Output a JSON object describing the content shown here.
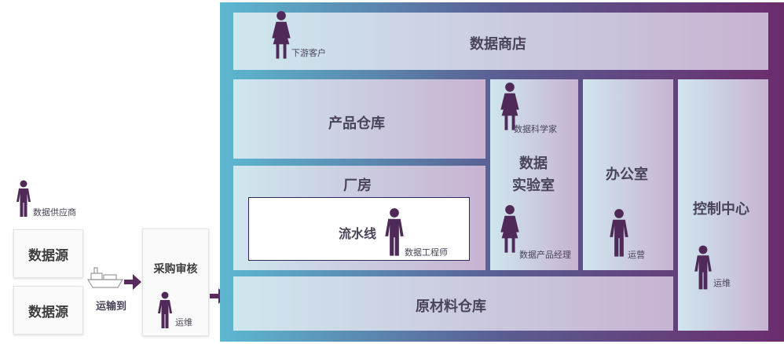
{
  "left": {
    "supplier_label": "数据供应商",
    "sources": [
      "数据源",
      "数据源"
    ],
    "transport_label": "运输到",
    "procurement_title": "采购审核",
    "procurement_role": "运维"
  },
  "warehouse": {
    "store": {
      "title": "数据商店",
      "role": "下游客户"
    },
    "product_warehouse": {
      "title": "产品仓库"
    },
    "factory": {
      "title": "厂房",
      "pipeline_title": "流水线",
      "pipeline_role": "数据工程师"
    },
    "lab": {
      "title_line1": "数据",
      "title_line2": "实验室",
      "role_top": "数据科学家",
      "role_bottom": "数据产品经理"
    },
    "office": {
      "title": "办公室",
      "role": "运营"
    },
    "control": {
      "title": "控制中心",
      "role": "运维"
    },
    "raw_material": {
      "title": "原材料仓库"
    }
  },
  "colors": {
    "frame_left": "#5fb7cf",
    "frame_right": "#6a2f6e",
    "figure": "#4f2a58",
    "arrow": "#5b2a5e"
  }
}
